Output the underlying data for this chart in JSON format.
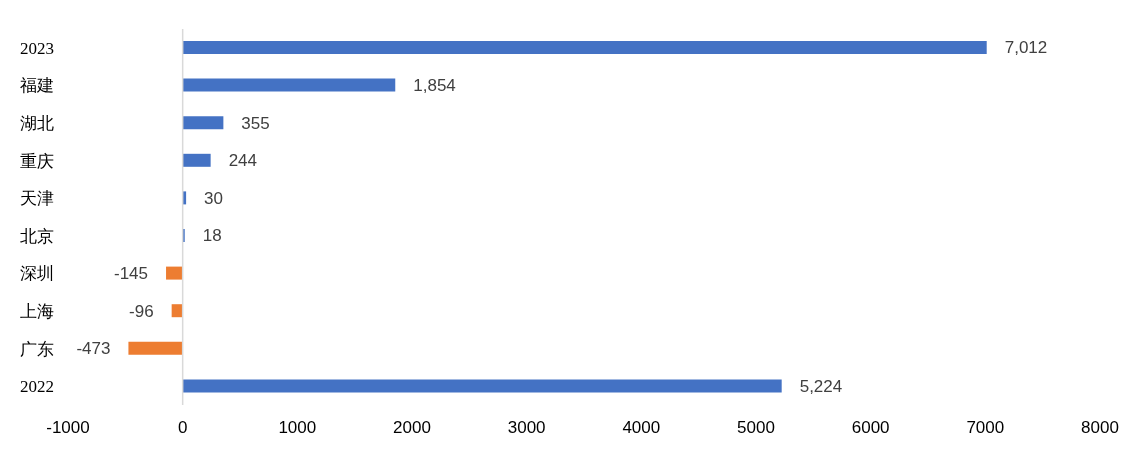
{
  "chart_data": {
    "type": "bar",
    "orientation": "horizontal",
    "categories": [
      "2023",
      "福建",
      "湖北",
      "重庆",
      "天津",
      "北京",
      "深圳",
      "上海",
      "广东",
      "2022"
    ],
    "values": [
      7012,
      1854,
      355,
      244,
      30,
      18,
      -145,
      -96,
      -473,
      5224
    ],
    "colors": [
      "#4472c4",
      "#4472c4",
      "#4472c4",
      "#4472c4",
      "#4472c4",
      "#4472c4",
      "#ed7d31",
      "#ed7d31",
      "#ed7d31",
      "#4472c4"
    ],
    "value_labels": [
      "7,012",
      "1,854",
      "355",
      "244",
      "30",
      "18",
      "-145",
      "-96",
      "-473",
      "5,224"
    ],
    "xlim": [
      -1000,
      8000
    ],
    "xticks": [
      -1000,
      0,
      1000,
      2000,
      3000,
      4000,
      5000,
      6000,
      7000,
      8000
    ]
  }
}
